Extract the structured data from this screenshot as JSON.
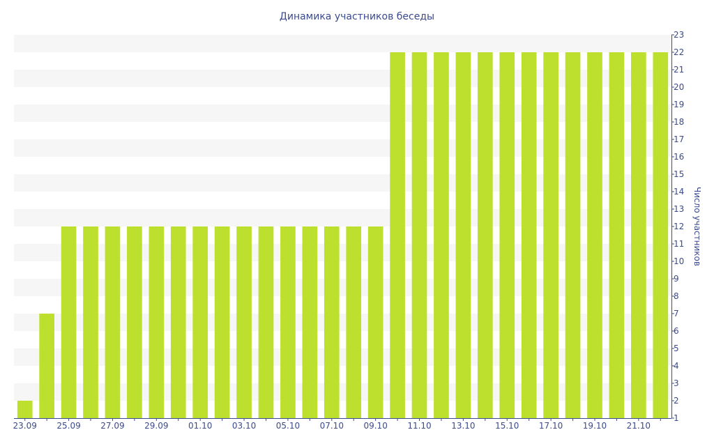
{
  "chart_data": {
    "type": "bar",
    "title": "Динамика участников беседы",
    "xlabel": "",
    "ylabel": "Число участников",
    "y_axis_side": "right",
    "ylim": [
      1,
      23
    ],
    "y_ticks": [
      1,
      2,
      3,
      4,
      5,
      6,
      7,
      8,
      9,
      10,
      11,
      12,
      13,
      14,
      15,
      16,
      17,
      18,
      19,
      20,
      21,
      22,
      23
    ],
    "grid": "alternating horizontal bands",
    "categories": [
      "23.09",
      "24.09",
      "25.09",
      "26.09",
      "27.09",
      "28.09",
      "29.09",
      "30.09",
      "01.10",
      "02.10",
      "03.10",
      "04.10",
      "05.10",
      "06.10",
      "07.10",
      "08.10",
      "09.10",
      "10.10",
      "11.10",
      "12.10",
      "13.10",
      "14.10",
      "15.10",
      "16.10",
      "17.10",
      "18.10",
      "19.10",
      "20.10",
      "21.10",
      "22.10"
    ],
    "x_tick_labels": [
      "23.09",
      "25.09",
      "27.09",
      "29.09",
      "01.10",
      "03.10",
      "05.10",
      "07.10",
      "09.10",
      "11.10",
      "13.10",
      "15.10",
      "17.10",
      "19.10",
      "21.10"
    ],
    "values": [
      2,
      7,
      12,
      12,
      12,
      12,
      12,
      12,
      12,
      12,
      12,
      12,
      12,
      12,
      12,
      12,
      12,
      22,
      22,
      22,
      22,
      22,
      22,
      22,
      22,
      22,
      22,
      22,
      22,
      22
    ],
    "colors": {
      "bar": "#bde02f",
      "band": "#f6f6f6",
      "axis": "#3b4a8c",
      "text": "#3b4a8c"
    }
  }
}
